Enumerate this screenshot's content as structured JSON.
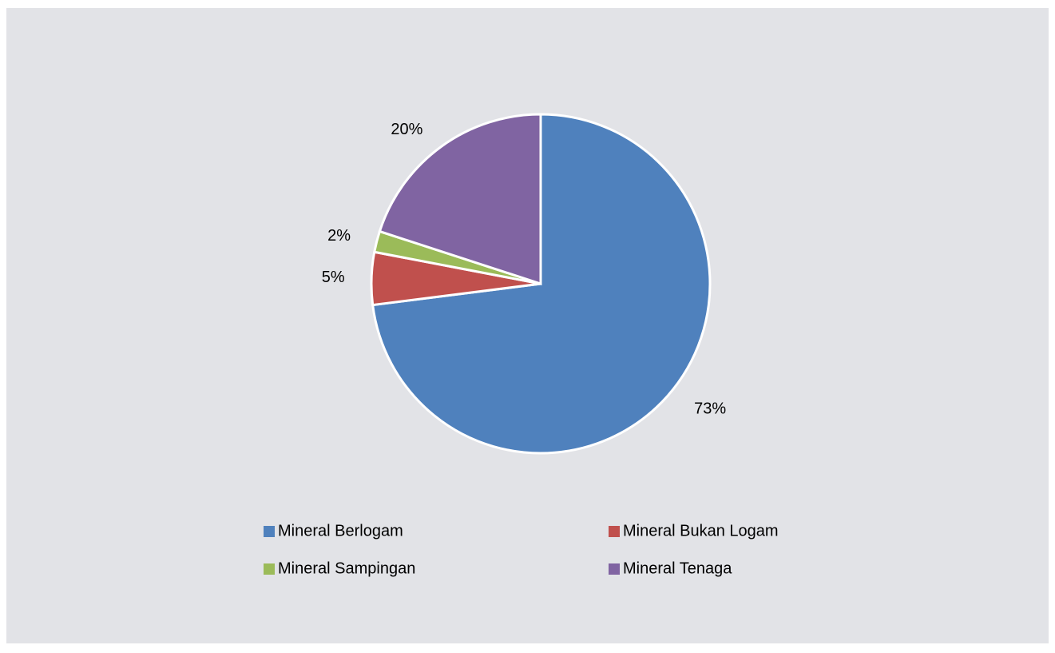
{
  "chart_data": {
    "type": "pie",
    "categories": [
      "Mineral Berlogam",
      "Mineral Bukan Logam",
      "Mineral Sampingan",
      "Mineral Tenaga"
    ],
    "values": [
      73,
      5,
      2,
      20
    ],
    "value_labels": [
      "73%",
      "5%",
      "2%",
      "20%"
    ],
    "colors": [
      "#4f81bd",
      "#c0504d",
      "#9bbb59",
      "#8064a2"
    ]
  }
}
